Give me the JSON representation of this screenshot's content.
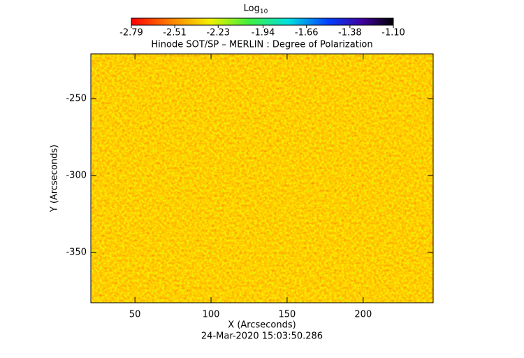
{
  "chart_data": {
    "type": "heatmap",
    "title": "Hinode SOT/SP – MERLIN : Degree of Polarization",
    "subtitle": "24-Mar-2020 15:03:50.286",
    "x_label": "X (Arcseconds)",
    "y_label": "Y (Arcseconds)",
    "xlim": [
      21,
      246
    ],
    "ylim": [
      -382.7,
      -220.9
    ],
    "xticks": [
      50,
      100,
      150,
      200
    ],
    "yticks": [
      -250,
      -300,
      -350
    ],
    "colorbar_label": "Log",
    "colorbar_label_sub": "10",
    "clim": [
      -2.79,
      -1.1
    ],
    "colorbar_ticks": [
      -2.79,
      -2.51,
      -2.23,
      -1.94,
      -1.66,
      -1.38,
      {
        "value": -1.1,
        "label": "-1.10"
      }
    ]
  }
}
